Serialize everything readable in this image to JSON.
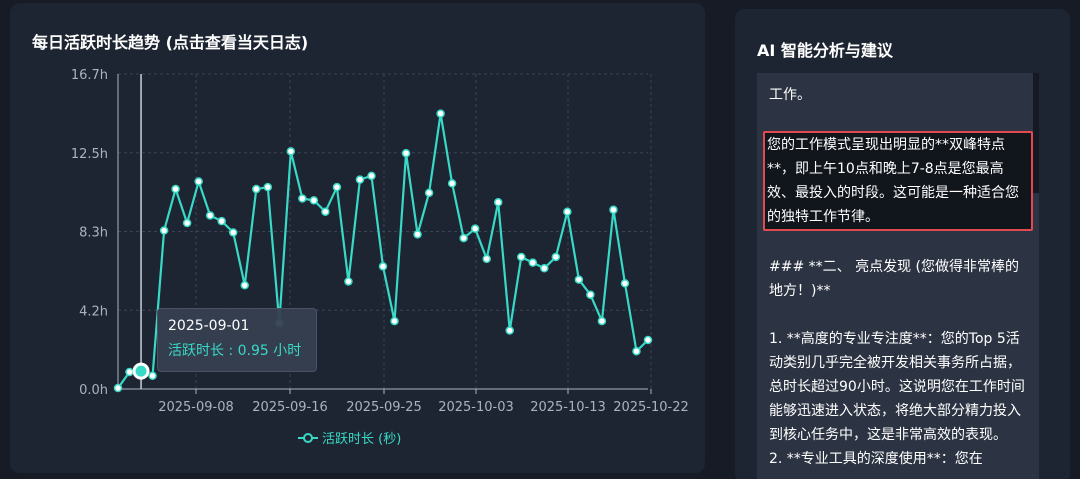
{
  "chart_panel": {
    "title": "每日活跃时长趋势 (点击查看当天日志)"
  },
  "tooltip": {
    "date": "2025-09-01",
    "label": "活跃时长 : 0.95 小时"
  },
  "legend": {
    "label": "活跃时长 (秒)"
  },
  "chart_data": {
    "type": "line",
    "title": "每日活跃时长趋势 (点击查看当天日志)",
    "xlabel": "",
    "ylabel": "",
    "y_tick_labels": [
      "0.0h",
      "4.2h",
      "8.3h",
      "12.5h",
      "16.7h"
    ],
    "x_tick_labels": [
      "2025-09-08",
      "2025-09-16",
      "2025-09-25",
      "2025-10-03",
      "2025-10-13",
      "2025-10-22"
    ],
    "ylim_hours": [
      0,
      16.7
    ],
    "grid": true,
    "legend_position": "bottom-center",
    "series": [
      {
        "name": "活跃时长 (秒)",
        "color": "#38d9c6",
        "values_hours": [
          0.05,
          0.9,
          0.95,
          0.7,
          8.4,
          10.6,
          8.8,
          11.0,
          9.2,
          8.9,
          8.3,
          5.5,
          10.6,
          10.7,
          3.5,
          12.6,
          10.1,
          10.0,
          9.4,
          10.7,
          5.7,
          11.1,
          11.3,
          6.5,
          3.6,
          12.5,
          8.2,
          10.4,
          14.6,
          10.9,
          8.0,
          8.5,
          6.9,
          9.9,
          3.1,
          7.0,
          6.7,
          6.4,
          7.0,
          9.4,
          5.8,
          5.0,
          3.6,
          9.5,
          5.6,
          2.0,
          2.6
        ]
      }
    ]
  },
  "ai_panel": {
    "title": "AI 智能分析与建议",
    "paragraphs": [
      "工作。",
      "您的工作模式呈现出明显的**双峰特点**，即上午10点和晚上7-8点是您最高效、最投入的时段。这可能是一种适合您的独特工作节律。",
      "### **二、 亮点发现 (您做得非常棒的地方！)**",
      "1. **高度的专业专注度**：您的Top 5活动类别几乎完全被开发相关事务所占据，总时长超过90小时。这说明您在工作时间能够迅速进入状态，将绝大部分精力投入到核心任务中，这是非常高效的表现。",
      "2. **专业工具的深度使用**：您在"
    ]
  }
}
